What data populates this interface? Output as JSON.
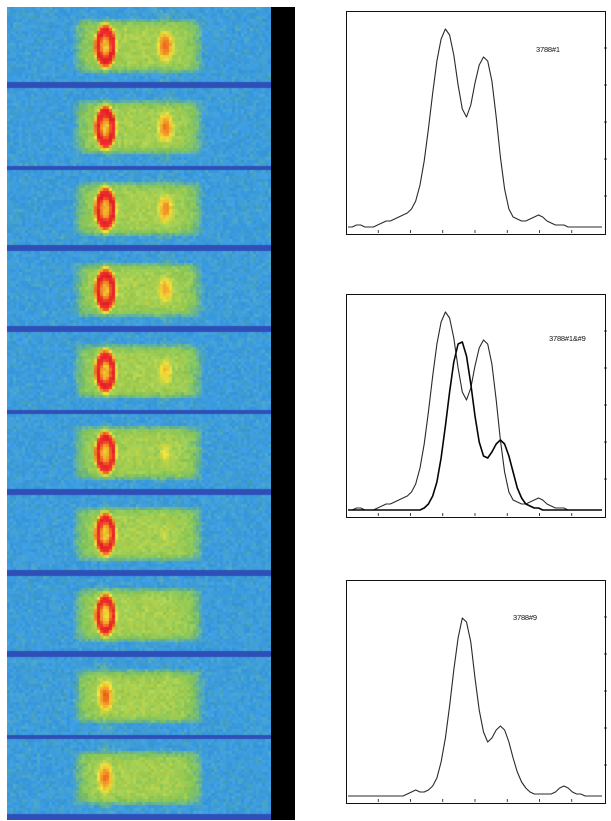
{
  "heatmap": {
    "type": "heatmap",
    "frame_count": 10,
    "colors": {
      "background": "#3a9be0",
      "separator": "#2f4fb8",
      "edge": "#000000",
      "low": "#86c65a",
      "mid": "#f2e23a",
      "high": "#f07820",
      "peak": "#e8252a"
    },
    "left_spot_intensity": [
      1.0,
      1.0,
      1.0,
      1.0,
      0.98,
      0.96,
      0.93,
      0.9,
      0.86,
      0.82
    ],
    "right_spot_intensity": [
      0.92,
      0.86,
      0.8,
      0.72,
      0.62,
      0.5,
      0.4,
      0.3,
      0.2,
      0.12
    ],
    "left_spot_ring": [
      true,
      true,
      true,
      true,
      true,
      true,
      true,
      true,
      false,
      false
    ]
  },
  "chart_data": [
    {
      "type": "line",
      "label": "3788#1",
      "x": [
        0,
        1,
        2,
        3,
        4,
        5,
        6,
        7,
        8,
        9,
        10,
        11,
        12,
        13,
        14,
        15,
        16,
        17,
        18,
        19,
        20,
        21,
        22,
        23,
        24,
        25,
        26,
        27,
        28,
        29,
        30,
        31,
        32,
        33,
        34,
        35,
        36,
        37,
        38,
        39,
        40,
        41,
        42,
        43,
        44,
        45,
        46,
        47,
        48,
        49,
        50,
        51,
        52,
        53,
        54,
        55,
        56,
        57,
        58,
        59,
        60
      ],
      "series": [
        {
          "values": [
            0.01,
            0.01,
            0.02,
            0.02,
            0.01,
            0.01,
            0.01,
            0.02,
            0.03,
            0.04,
            0.04,
            0.05,
            0.06,
            0.07,
            0.08,
            0.1,
            0.14,
            0.22,
            0.34,
            0.5,
            0.68,
            0.84,
            0.95,
            1.0,
            0.97,
            0.87,
            0.72,
            0.6,
            0.56,
            0.62,
            0.73,
            0.82,
            0.86,
            0.84,
            0.74,
            0.56,
            0.36,
            0.2,
            0.1,
            0.06,
            0.05,
            0.04,
            0.04,
            0.05,
            0.06,
            0.07,
            0.06,
            0.04,
            0.03,
            0.02,
            0.02,
            0.02,
            0.01,
            0.01,
            0.01,
            0.01,
            0.01,
            0.01,
            0.01,
            0.01,
            0.01
          ]
        }
      ],
      "xlim": [
        0,
        60
      ],
      "ylim": [
        0,
        1.08
      ]
    },
    {
      "type": "line",
      "label": "3788#1&#9",
      "x": [
        0,
        1,
        2,
        3,
        4,
        5,
        6,
        7,
        8,
        9,
        10,
        11,
        12,
        13,
        14,
        15,
        16,
        17,
        18,
        19,
        20,
        21,
        22,
        23,
        24,
        25,
        26,
        27,
        28,
        29,
        30,
        31,
        32,
        33,
        34,
        35,
        36,
        37,
        38,
        39,
        40,
        41,
        42,
        43,
        44,
        45,
        46,
        47,
        48,
        49,
        50,
        51,
        52,
        53,
        54,
        55,
        56,
        57,
        58,
        59,
        60
      ],
      "series": [
        {
          "values": [
            0.01,
            0.01,
            0.02,
            0.02,
            0.01,
            0.01,
            0.01,
            0.02,
            0.03,
            0.04,
            0.04,
            0.05,
            0.06,
            0.07,
            0.08,
            0.1,
            0.14,
            0.22,
            0.34,
            0.5,
            0.68,
            0.84,
            0.95,
            1.0,
            0.97,
            0.87,
            0.72,
            0.6,
            0.56,
            0.62,
            0.73,
            0.82,
            0.86,
            0.84,
            0.74,
            0.56,
            0.36,
            0.2,
            0.1,
            0.06,
            0.05,
            0.04,
            0.04,
            0.05,
            0.06,
            0.07,
            0.06,
            0.04,
            0.03,
            0.02,
            0.02,
            0.02,
            0.01,
            0.01,
            0.01,
            0.01,
            0.01,
            0.01,
            0.01,
            0.01,
            0.01
          ]
        },
        {
          "values": [
            0.01,
            0.01,
            0.01,
            0.01,
            0.01,
            0.01,
            0.01,
            0.01,
            0.01,
            0.01,
            0.01,
            0.01,
            0.01,
            0.01,
            0.01,
            0.01,
            0.01,
            0.01,
            0.02,
            0.04,
            0.08,
            0.15,
            0.27,
            0.43,
            0.6,
            0.75,
            0.84,
            0.85,
            0.78,
            0.64,
            0.48,
            0.35,
            0.28,
            0.27,
            0.3,
            0.34,
            0.36,
            0.34,
            0.28,
            0.2,
            0.12,
            0.07,
            0.04,
            0.03,
            0.02,
            0.02,
            0.01,
            0.01,
            0.01,
            0.01,
            0.01,
            0.01,
            0.01,
            0.01,
            0.01,
            0.01,
            0.01,
            0.01,
            0.01,
            0.01,
            0.01
          ]
        }
      ],
      "xlim": [
        0,
        60
      ],
      "ylim": [
        0,
        1.08
      ]
    },
    {
      "type": "line",
      "label": "3788#9",
      "x": [
        0,
        1,
        2,
        3,
        4,
        5,
        6,
        7,
        8,
        9,
        10,
        11,
        12,
        13,
        14,
        15,
        16,
        17,
        18,
        19,
        20,
        21,
        22,
        23,
        24,
        25,
        26,
        27,
        28,
        29,
        30,
        31,
        32,
        33,
        34,
        35,
        36,
        37,
        38,
        39,
        40,
        41,
        42,
        43,
        44,
        45,
        46,
        47,
        48,
        49,
        50,
        51,
        52,
        53,
        54,
        55,
        56,
        57,
        58,
        59,
        60
      ],
      "series": [
        {
          "values": [
            0.01,
            0.01,
            0.01,
            0.01,
            0.01,
            0.01,
            0.01,
            0.01,
            0.01,
            0.01,
            0.01,
            0.01,
            0.01,
            0.01,
            0.02,
            0.03,
            0.04,
            0.03,
            0.03,
            0.04,
            0.06,
            0.1,
            0.18,
            0.3,
            0.46,
            0.64,
            0.8,
            0.9,
            0.88,
            0.78,
            0.6,
            0.44,
            0.33,
            0.28,
            0.3,
            0.34,
            0.36,
            0.34,
            0.28,
            0.2,
            0.13,
            0.08,
            0.05,
            0.03,
            0.02,
            0.02,
            0.02,
            0.02,
            0.02,
            0.03,
            0.05,
            0.06,
            0.05,
            0.03,
            0.02,
            0.02,
            0.01,
            0.01,
            0.01,
            0.01,
            0.01
          ]
        }
      ],
      "xlim": [
        0,
        60
      ],
      "ylim": [
        0,
        1.08
      ]
    }
  ]
}
